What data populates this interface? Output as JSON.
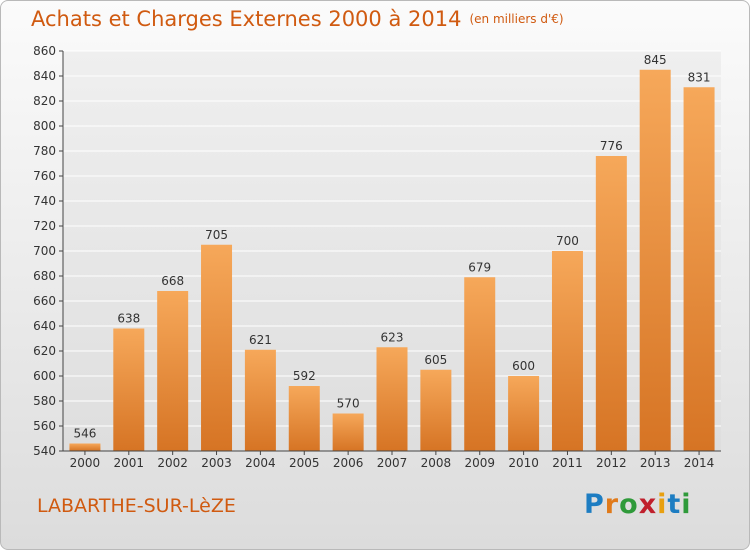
{
  "header": {
    "title": "Achats et Charges Externes 2000 à 2014",
    "unit": "(en milliers d'€)"
  },
  "footer": {
    "commune": "LABARTHE-SUR-LèZE",
    "logo_letters": [
      "P",
      "r",
      "o",
      "x",
      "i",
      "t",
      "i"
    ],
    "logo_colors": [
      "#1d7dc2",
      "#e07a1a",
      "#2f9a3a",
      "#c0202c",
      "#e8a010",
      "#1d7dc2",
      "#2f9a3a"
    ]
  },
  "colors": {
    "title": "#d05a10",
    "bar_light": "#f6a85a",
    "bar_dark": "#d67424",
    "grid": "#ffffff"
  },
  "chart_data": {
    "type": "bar",
    "title": "Achats et Charges Externes 2000 à 2014",
    "subtitle": "(en milliers d'€)",
    "categories": [
      "2000",
      "2001",
      "2002",
      "2003",
      "2004",
      "2005",
      "2006",
      "2007",
      "2008",
      "2009",
      "2010",
      "2011",
      "2012",
      "2013",
      "2014"
    ],
    "values": [
      546,
      638,
      668,
      705,
      621,
      592,
      570,
      623,
      605,
      679,
      600,
      700,
      776,
      845,
      831
    ],
    "ylim": [
      540,
      860
    ],
    "yticks": [
      540,
      560,
      580,
      600,
      620,
      640,
      660,
      680,
      700,
      720,
      740,
      760,
      780,
      800,
      820,
      840,
      860
    ],
    "grid": true,
    "data_labels": true
  }
}
